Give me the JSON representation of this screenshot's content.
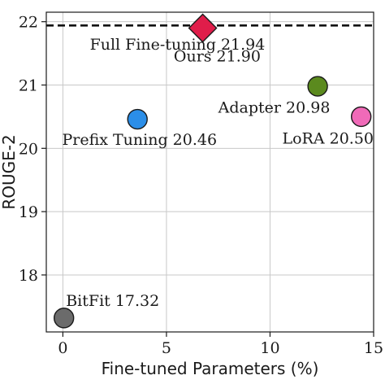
{
  "chart_data": {
    "type": "scatter",
    "xlabel": "Fine-tuned Parameters (%)",
    "ylabel": "ROUGE-2",
    "xlim": [
      -0.8,
      15
    ],
    "ylim": [
      17.1,
      22.15
    ],
    "xticks": [
      0,
      5,
      10,
      15
    ],
    "yticks": [
      18,
      19,
      20,
      21,
      22
    ],
    "grid": true,
    "points": [
      {
        "label": "BitFit 17.32",
        "x": 0.05,
        "y": 17.32,
        "marker": "circle",
        "color": "#6b6b6b",
        "label_anchor": "start",
        "label_dx": 0.1,
        "label_dy": 0.27
      },
      {
        "label": "Prefix Tuning 20.46",
        "x": 3.6,
        "y": 20.46,
        "marker": "circle",
        "color": "#2b8ee8",
        "label_anchor": "middle",
        "label_dx": 0.1,
        "label_dy": -0.33
      },
      {
        "label": "Adapter 20.98",
        "x": 12.3,
        "y": 20.98,
        "marker": "circle",
        "color": "#5b8a1e",
        "label_anchor": "end",
        "label_dx": 0.6,
        "label_dy": -0.34
      },
      {
        "label": "LoRA 20.50",
        "x": 14.4,
        "y": 20.5,
        "marker": "circle",
        "color": "#f06ab8",
        "label_anchor": "end",
        "label_dx": 0.6,
        "label_dy": -0.35
      },
      {
        "label": "Ours 21.90",
        "x": 6.75,
        "y": 21.9,
        "marker": "diamond",
        "color": "#e01d4a",
        "label_anchor": "middle",
        "label_dx": 0.7,
        "label_dy": -0.45
      }
    ],
    "reference_line": {
      "label": "Full Fine-tuning 21.94",
      "y": 21.94,
      "style": "dashed",
      "label_x": 1.3,
      "label_dy": -0.2
    }
  }
}
